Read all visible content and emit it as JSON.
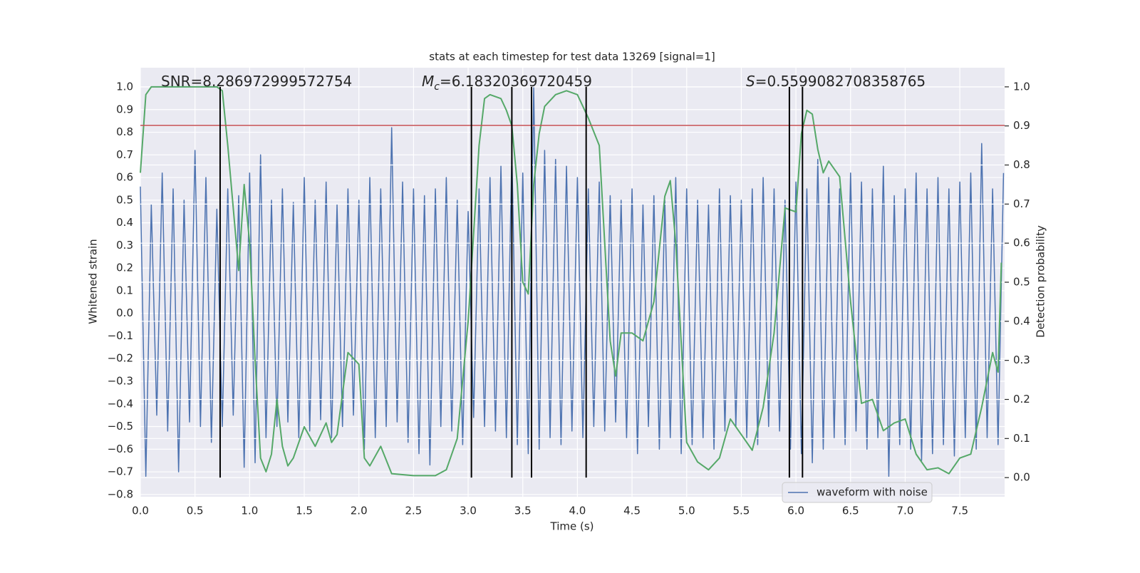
{
  "chart_data": {
    "type": "line",
    "title": "stats at each timestep for test data 13269 [signal=1]",
    "xlabel": "Time (s)",
    "ylabel": "Whitened strain",
    "y2label": "Detection probability",
    "xlim": [
      0,
      7.91
    ],
    "ylim": [
      -0.81,
      1.085
    ],
    "y2lim": [
      -0.049,
      1.049
    ],
    "xticks": [
      {
        "value": 0,
        "label": "0.0"
      },
      0.5,
      {
        "value": 1,
        "label": "1.0"
      },
      1.5,
      {
        "value": 2,
        "label": "2.0"
      },
      2.5,
      {
        "value": 3,
        "label": "3.0"
      },
      3.5,
      {
        "value": 4,
        "label": "4.0"
      },
      4.5,
      {
        "value": 5,
        "label": "5.0"
      },
      5.5,
      {
        "value": 6,
        "label": "6.0"
      },
      6.5,
      {
        "value": 7,
        "label": "7.0"
      },
      7.5
    ],
    "yticks": [
      {
        "value": -0.8,
        "label": "−0.8"
      },
      {
        "value": -0.7,
        "label": "−0.7"
      },
      {
        "value": -0.6,
        "label": "−0.6"
      },
      {
        "value": -0.5,
        "label": "−0.5"
      },
      {
        "value": -0.4,
        "label": "−0.4"
      },
      {
        "value": -0.3,
        "label": "−0.3"
      },
      {
        "value": -0.2,
        "label": "−0.2"
      },
      {
        "value": -0.1,
        "label": "−0.1"
      },
      {
        "value": 0,
        "label": "0.0"
      },
      0.1,
      0.2,
      0.3,
      0.4,
      0.5,
      0.6,
      0.7,
      0.8,
      0.9,
      {
        "value": 1,
        "label": "1.0"
      }
    ],
    "y2ticks": [
      {
        "value": 0,
        "label": "0.0"
      },
      0.1,
      0.2,
      0.3,
      0.4,
      0.5,
      0.6,
      0.7,
      0.8,
      0.9,
      {
        "value": 1,
        "label": "1.0"
      }
    ],
    "grid": true,
    "legend": "lower right",
    "series": [
      {
        "name": "waveform with noise",
        "color": "#4c72b0",
        "x": [
          0,
          0.05,
          0.1,
          0.15,
          0.2,
          0.25,
          0.3,
          0.35,
          0.4,
          0.45,
          0.5,
          0.55,
          0.6,
          0.65,
          0.7,
          0.75,
          0.8,
          0.85,
          0.9,
          0.95,
          1,
          1.05,
          1.1,
          1.15,
          1.2,
          1.25,
          1.3,
          1.35,
          1.4,
          1.45,
          1.5,
          1.55,
          1.6,
          1.65,
          1.7,
          1.75,
          1.8,
          1.85,
          1.9,
          1.95,
          2,
          2.05,
          2.1,
          2.15,
          2.2,
          2.25,
          2.3,
          2.35,
          2.4,
          2.45,
          2.5,
          2.55,
          2.6,
          2.65,
          2.7,
          2.75,
          2.8,
          2.85,
          2.9,
          2.95,
          3,
          3.05,
          3.1,
          3.15,
          3.2,
          3.25,
          3.3,
          3.35,
          3.4,
          3.45,
          3.5,
          3.55,
          3.6,
          3.65,
          3.7,
          3.75,
          3.8,
          3.85,
          3.9,
          3.95,
          4,
          4.05,
          4.1,
          4.15,
          4.2,
          4.25,
          4.3,
          4.35,
          4.4,
          4.45,
          4.5,
          4.55,
          4.6,
          4.65,
          4.7,
          4.75,
          4.8,
          4.85,
          4.9,
          4.95,
          5,
          5.05,
          5.1,
          5.15,
          5.2,
          5.25,
          5.3,
          5.35,
          5.4,
          5.45,
          5.5,
          5.55,
          5.6,
          5.65,
          5.7,
          5.75,
          5.8,
          5.85,
          5.9,
          5.95,
          6,
          6.05,
          6.1,
          6.15,
          6.2,
          6.25,
          6.3,
          6.35,
          6.4,
          6.45,
          6.5,
          6.55,
          6.6,
          6.65,
          6.7,
          6.75,
          6.8,
          6.85,
          6.9,
          6.95,
          7,
          7.05,
          7.1,
          7.15,
          7.2,
          7.25,
          7.3,
          7.35,
          7.4,
          7.45,
          7.5,
          7.55,
          7.6,
          7.65,
          7.7,
          7.75,
          7.8,
          7.85,
          7.9
        ],
        "values": [
          0.56,
          -0.72,
          0.48,
          -0.45,
          0.62,
          -0.52,
          0.55,
          -0.7,
          0.5,
          -0.48,
          0.72,
          -0.5,
          0.6,
          -0.57,
          0.46,
          -0.5,
          0.55,
          -0.45,
          0.52,
          -0.68,
          0.62,
          -0.66,
          0.7,
          -0.55,
          0.5,
          -0.5,
          0.55,
          -0.48,
          0.49,
          -0.55,
          0.6,
          -0.52,
          0.5,
          -0.47,
          0.58,
          -0.55,
          0.48,
          -0.5,
          0.55,
          -0.45,
          0.5,
          -0.6,
          0.6,
          -0.55,
          0.55,
          -0.5,
          0.82,
          -0.48,
          0.58,
          -0.57,
          0.55,
          -0.62,
          0.52,
          -0.67,
          0.55,
          -0.5,
          0.6,
          -0.52,
          0.5,
          -0.58,
          0.45,
          -0.46,
          0.55,
          -0.5,
          0.6,
          -0.52,
          0.65,
          -0.55,
          0.72,
          -0.58,
          0.62,
          -0.62,
          1.0,
          -0.6,
          0.72,
          -0.55,
          0.68,
          -0.58,
          0.65,
          -0.52,
          0.6,
          -0.55,
          0.55,
          -0.5,
          0.58,
          -0.52,
          0.52,
          -0.48,
          0.5,
          -0.55,
          0.55,
          -0.62,
          0.48,
          -0.5,
          0.52,
          -0.6,
          0.5,
          -0.55,
          0.6,
          -0.62,
          0.55,
          -0.58,
          0.5,
          -0.55,
          0.48,
          -0.6,
          0.55,
          -0.52,
          0.52,
          -0.5,
          0.5,
          -0.55,
          0.55,
          -0.58,
          0.6,
          -0.5,
          0.55,
          -0.52,
          0.5,
          -0.6,
          0.58,
          -0.62,
          0.55,
          -0.66,
          0.68,
          -0.6,
          0.6,
          -0.55,
          0.55,
          -0.58,
          0.62,
          -0.52,
          0.58,
          -0.6,
          0.55,
          -0.55,
          0.65,
          -0.72,
          0.52,
          -0.58,
          0.55,
          -0.6,
          0.62,
          -0.65,
          0.55,
          -0.62,
          0.6,
          -0.58,
          0.55,
          -0.63,
          0.58,
          -0.55,
          0.62,
          -0.6,
          0.75,
          -0.55,
          0.55,
          -0.58,
          0.62
        ]
      },
      {
        "color": "#55a868",
        "axis": "y2",
        "x": [
          0,
          0.05,
          0.1,
          0.2,
          0.3,
          0.4,
          0.5,
          0.6,
          0.7,
          0.75,
          0.8,
          0.9,
          0.95,
          1.0,
          1.05,
          1.1,
          1.15,
          1.2,
          1.25,
          1.3,
          1.35,
          1.4,
          1.5,
          1.6,
          1.7,
          1.75,
          1.8,
          1.9,
          2.0,
          2.05,
          2.1,
          2.2,
          2.3,
          2.5,
          2.7,
          2.8,
          2.9,
          3.0,
          3.1,
          3.15,
          3.2,
          3.3,
          3.35,
          3.4,
          3.45,
          3.5,
          3.55,
          3.6,
          3.65,
          3.7,
          3.8,
          3.9,
          4.0,
          4.1,
          4.2,
          4.3,
          4.35,
          4.4,
          4.5,
          4.6,
          4.7,
          4.8,
          4.85,
          4.9,
          5.0,
          5.1,
          5.2,
          5.3,
          5.4,
          5.5,
          5.6,
          5.7,
          5.8,
          5.9,
          6.0,
          6.05,
          6.1,
          6.15,
          6.2,
          6.25,
          6.3,
          6.4,
          6.5,
          6.6,
          6.7,
          6.8,
          6.9,
          7.0,
          7.1,
          7.2,
          7.3,
          7.4,
          7.5,
          7.6,
          7.7,
          7.8,
          7.85,
          7.88
        ],
        "values": [
          0.78,
          0.98,
          1.0,
          1.0,
          1.0,
          1.0,
          1.0,
          1.0,
          1.0,
          0.99,
          0.85,
          0.53,
          0.75,
          0.6,
          0.3,
          0.05,
          0.015,
          0.06,
          0.2,
          0.08,
          0.03,
          0.05,
          0.13,
          0.08,
          0.14,
          0.09,
          0.11,
          0.32,
          0.29,
          0.05,
          0.03,
          0.08,
          0.01,
          0.005,
          0.005,
          0.02,
          0.1,
          0.4,
          0.85,
          0.97,
          0.98,
          0.97,
          0.94,
          0.9,
          0.75,
          0.5,
          0.47,
          0.75,
          0.88,
          0.95,
          0.98,
          0.99,
          0.98,
          0.92,
          0.85,
          0.35,
          0.26,
          0.37,
          0.37,
          0.35,
          0.45,
          0.72,
          0.76,
          0.6,
          0.09,
          0.04,
          0.02,
          0.05,
          0.15,
          0.11,
          0.07,
          0.18,
          0.37,
          0.69,
          0.68,
          0.88,
          0.94,
          0.93,
          0.84,
          0.78,
          0.81,
          0.77,
          0.45,
          0.19,
          0.2,
          0.12,
          0.14,
          0.15,
          0.06,
          0.02,
          0.025,
          0.01,
          0.05,
          0.06,
          0.18,
          0.32,
          0.27,
          0.55
        ]
      }
    ],
    "hline": {
      "value": 0.83,
      "color": "#c44e52"
    },
    "vlines": {
      "x": [
        0.73,
        3.03,
        3.4,
        3.58,
        4.08,
        5.94,
        6.06
      ],
      "ymin": 0,
      "ymax": 1,
      "axis": "y2",
      "color": "#000000"
    },
    "annotations": [
      {
        "text": "SNR=8.286972999572754"
      },
      {
        "symbol": "M",
        "subscript": "c",
        "text": "=6.18320369720459"
      },
      {
        "symbol": "S",
        "text": "=0.5599082708358765"
      }
    ]
  }
}
